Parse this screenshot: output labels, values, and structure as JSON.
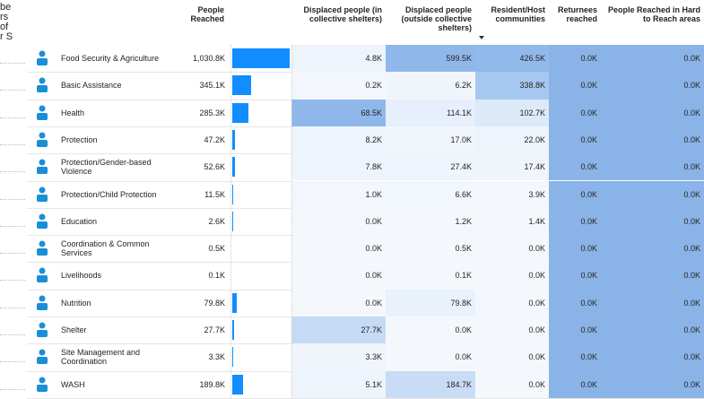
{
  "side_text": [
    "be",
    "rs",
    "of",
    "r S"
  ],
  "table": {
    "headers": [
      "People Reached",
      "Displaced people (in collective shelters)",
      "Displaced people (outside collective shelters)",
      "Resident/Host communities",
      "Returnees reached",
      "People Reached in Hard to Reach areas"
    ],
    "bar_color": "#118dff",
    "rows": [
      {
        "sector": "Food Security & Agriculture",
        "people": {
          "value": 1030800,
          "label": "1,030.8K"
        },
        "cells": [
          "4.8K",
          "599.5K",
          "426.5K",
          "0.0K",
          "0.0K"
        ],
        "colors": [
          "#eef4fc",
          "#8fb7ea",
          "#92b9eb",
          "#8ab4e8",
          "#8ab4e8"
        ]
      },
      {
        "sector": "Basic Assistance",
        "people": {
          "value": 345100,
          "label": "345.1K"
        },
        "cells": [
          "0.2K",
          "6.2K",
          "338.8K",
          "0.0K",
          "0.0K"
        ],
        "colors": [
          "#f3f7fd",
          "#f0f5fc",
          "#a6c7f0",
          "#8ab4e8",
          "#8ab4e8"
        ]
      },
      {
        "sector": "Health",
        "people": {
          "value": 285300,
          "label": "285.3K"
        },
        "cells": [
          "68.5K",
          "114.1K",
          "102.7K",
          "0.0K",
          "0.0K"
        ],
        "colors": [
          "#8fb7ea",
          "#e6effb",
          "#dce9f9",
          "#8ab4e8",
          "#8ab4e8"
        ]
      },
      {
        "sector": "Protection",
        "people": {
          "value": 47200,
          "label": "47.2K"
        },
        "cells": [
          "8.2K",
          "17.0K",
          "22.0K",
          "0.0K",
          "0.0K"
        ],
        "colors": [
          "#eef4fc",
          "#f1f6fc",
          "#eef4fc",
          "#8ab4e8",
          "#8ab4e8"
        ]
      },
      {
        "sector": "Protection/Gender-based Violence",
        "people": {
          "value": 52600,
          "label": "52.6K"
        },
        "cells": [
          "7.8K",
          "27.4K",
          "17.4K",
          "0.0K",
          "0.0K"
        ],
        "colors": [
          "#eef4fc",
          "#eff5fc",
          "#f0f5fc",
          "#8ab4e8",
          "#8ab4e8"
        ]
      },
      {
        "sector": "Protection/Child Protection",
        "people": {
          "value": 11500,
          "label": "11.5K"
        },
        "cells": [
          "1.0K",
          "6.6K",
          "3.9K",
          "0.0K",
          "0.0K"
        ],
        "colors": [
          "#f3f7fd",
          "#f2f6fd",
          "#f3f7fd",
          "#8ab4e8",
          "#8ab4e8"
        ]
      },
      {
        "sector": "Education",
        "people": {
          "value": 2600,
          "label": "2.6K"
        },
        "cells": [
          "0.0K",
          "1.2K",
          "1.4K",
          "0.0K",
          "0.0K"
        ],
        "colors": [
          "#f4f8fd",
          "#f4f8fd",
          "#f4f8fd",
          "#8ab4e8",
          "#8ab4e8"
        ]
      },
      {
        "sector": "Coordination & Common Services",
        "people": {
          "value": 500,
          "label": "0.5K"
        },
        "cells": [
          "0.0K",
          "0.5K",
          "0.0K",
          "0.0K",
          "0.0K"
        ],
        "colors": [
          "#f4f8fd",
          "#f4f8fd",
          "#f4f8fd",
          "#8ab4e8",
          "#8ab4e8"
        ]
      },
      {
        "sector": "Livelihoods",
        "people": {
          "value": 100,
          "label": "0.1K"
        },
        "cells": [
          "0.0K",
          "0.1K",
          "0.0K",
          "0.0K",
          "0.0K"
        ],
        "colors": [
          "#f4f8fd",
          "#f4f8fd",
          "#f4f8fd",
          "#8ab4e8",
          "#8ab4e8"
        ]
      },
      {
        "sector": "Nutrition",
        "people": {
          "value": 79800,
          "label": "79.8K"
        },
        "cells": [
          "0.0K",
          "79.8K",
          "0.0K",
          "0.0K",
          "0.0K"
        ],
        "colors": [
          "#f4f8fd",
          "#e9f1fb",
          "#f4f8fd",
          "#8ab4e8",
          "#8ab4e8"
        ]
      },
      {
        "sector": "Shelter",
        "people": {
          "value": 27700,
          "label": "27.7K"
        },
        "cells": [
          "27.7K",
          "0.0K",
          "0.0K",
          "0.0K",
          "0.0K"
        ],
        "colors": [
          "#c5daf5",
          "#f4f8fd",
          "#f4f8fd",
          "#8ab4e8",
          "#8ab4e8"
        ]
      },
      {
        "sector": "Site Management and Coordination",
        "people": {
          "value": 3300,
          "label": "3.3K"
        },
        "cells": [
          "3.3K",
          "0.0K",
          "0.0K",
          "0.0K",
          "0.0K"
        ],
        "colors": [
          "#f0f5fc",
          "#f4f8fd",
          "#f4f8fd",
          "#8ab4e8",
          "#8ab4e8"
        ]
      },
      {
        "sector": "WASH",
        "people": {
          "value": 189800,
          "label": "189.8K"
        },
        "cells": [
          "5.1K",
          "184.7K",
          "0.0K",
          "0.0K",
          "0.0K"
        ],
        "colors": [
          "#eef4fc",
          "#c9dcf5",
          "#f4f8fd",
          "#8ab4e8",
          "#8ab4e8"
        ]
      }
    ]
  }
}
